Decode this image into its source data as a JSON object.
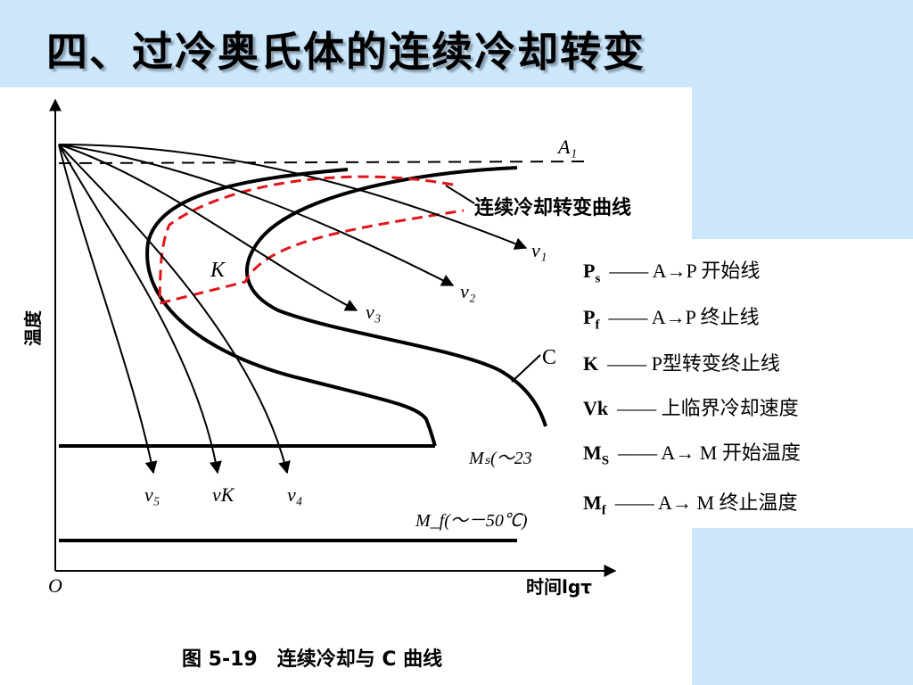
{
  "title": "四、过冷奥氏体的连续冷却转变",
  "figure": {
    "y_axis_label": "温度",
    "x_axis_label": "时间lgτ",
    "origin_label": "O",
    "a1_label": "A₁",
    "red_curve_label": "连续冷却转变曲线",
    "k_label": "K",
    "c_curve_label": "C",
    "ms_label": "Mₛ(～23",
    "mf_label": "M_f(～－50℃)",
    "velocity_labels": [
      "v₁",
      "v₂",
      "v₃",
      "v₄",
      "vK",
      "v₅"
    ],
    "caption": "图 5-19　连续冷却与 C 曲线"
  },
  "legend": [
    {
      "symbol": "P",
      "sub": "s",
      "desc": "—— A→P 开始线"
    },
    {
      "symbol": "P",
      "sub": "f",
      "desc": "—— A→P 终止线"
    },
    {
      "symbol": "K",
      "sub": "",
      "desc": "—— P型转变终止线"
    },
    {
      "symbol": "Vk",
      "sub": "",
      "desc": "—— 上临界冷却速度"
    },
    {
      "symbol": "M",
      "sub": "S",
      "desc": "—— A→ M 开始温度"
    },
    {
      "symbol": "M",
      "sub": "f",
      "desc": "—— A→ M 终止温度"
    }
  ],
  "colors": {
    "background": "#cce7fb",
    "curve": "#000000",
    "cct_curve": "#e0151b"
  }
}
